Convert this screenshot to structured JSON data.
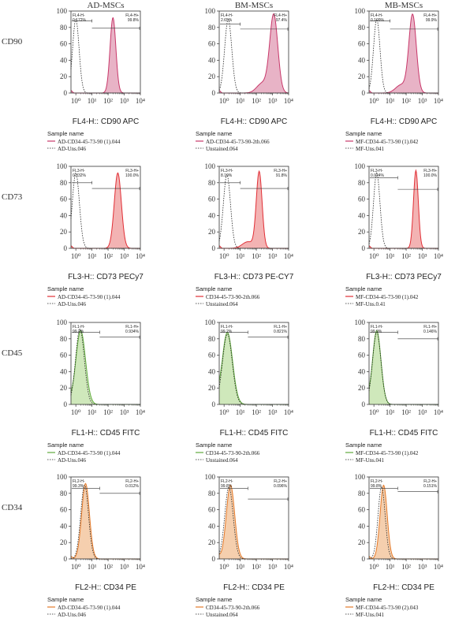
{
  "columns": [
    "AD-MSCs",
    "BM-MSCs",
    "MB-MSCs"
  ],
  "rows": [
    "CD90",
    "CD73",
    "CD45",
    "CD34"
  ],
  "sample_name_label": "Sample name",
  "chart_data": {
    "type": "histogram-grid",
    "y_ticks": [
      "0",
      "20",
      "40",
      "60",
      "80",
      "100"
    ],
    "ylim": [
      0,
      100
    ],
    "x_scale": "log",
    "xlim": [
      0.5,
      10000
    ],
    "x_ticks": [
      1,
      10,
      100,
      1000,
      10000
    ],
    "x_tick_labels": [
      "10⁰",
      "10¹",
      "10²",
      "10³",
      "10⁴"
    ],
    "colors": {
      "CD90": "#c8386a",
      "CD73": "#e12f36",
      "CD45": "#5faa3c",
      "CD34": "#e47a2a"
    },
    "fills": {
      "CD90": "#e8b3c6",
      "CD73": "#f3b3b3",
      "CD45": "#cfe8bb",
      "CD34": "#f5cfae"
    },
    "panels": [
      {
        "row": "CD90",
        "col": "AD-MSCs",
        "xlabel": "FL4-H:: CD90 APC",
        "gate_neg_label": "FL4-H-",
        "gate_neg_value": "0.172%",
        "gate_pos_label": "FL4-H+",
        "gate_pos_value": "99.8%",
        "legend": [
          "AD-CD34-45-73-90 (1).044",
          "AD-Uns.046"
        ],
        "gate": {
          "x_min": 0.5,
          "x_split": 10,
          "x_max": 10000,
          "y": 88,
          "y2": 79
        },
        "stained_peak": {
          "mode": 200,
          "width": 0.18,
          "max": 92,
          "tail": 0
        },
        "unstained_peak": {
          "mode": 1.0,
          "width": 0.2,
          "max": 90
        }
      },
      {
        "row": "CD90",
        "col": "BM-MSCs",
        "xlabel": "FL4-H:: CD90 APC",
        "gate_neg_label": "FL4-H-",
        "gate_neg_value": "2.65%",
        "gate_pos_label": "FL4-H+",
        "gate_pos_value": "97.4%",
        "legend": [
          "AD-CD34-45-73-90-2th.066",
          "Unstained.064"
        ],
        "gate": {
          "x_min": 0.5,
          "x_split": 10,
          "x_max": 10000,
          "y": 84,
          "y2": 78
        },
        "stained_peak": {
          "mode": 1200,
          "width": 0.25,
          "max": 95,
          "tail": 12
        },
        "unstained_peak": {
          "mode": 1.8,
          "width": 0.22,
          "max": 90
        }
      },
      {
        "row": "CD90",
        "col": "MB-MSCs",
        "xlabel": "FL4-H:: CD90 APC",
        "gate_neg_label": "FL4-H-",
        "gate_neg_value": "0.109%",
        "gate_pos_label": "FL4-H+",
        "gate_pos_value": "99.9%",
        "legend": [
          "MF-CD34-45-73-90 (1).042",
          "MF-Uns.041"
        ],
        "gate": {
          "x_min": 0.5,
          "x_split": 10,
          "x_max": 10000,
          "y": 88,
          "y2": 78
        },
        "stained_peak": {
          "mode": 250,
          "width": 0.23,
          "max": 95,
          "tail": 10
        },
        "unstained_peak": {
          "mode": 1.5,
          "width": 0.2,
          "max": 90
        }
      },
      {
        "row": "CD73",
        "col": "AD-MSCs",
        "xlabel": "FL3-H:: CD73 PECy7",
        "gate_neg_label": "FL3-H-",
        "gate_neg_value": "0.032%",
        "gate_pos_label": "FL3-H+",
        "gate_pos_value": "100.0%",
        "legend": [
          "AD-CD34-45-73-90 (1).044",
          "AD-Uns.046"
        ],
        "gate": {
          "x_min": 0.5,
          "x_split": 10,
          "x_max": 10000,
          "y": 80,
          "y2": 73
        },
        "stained_peak": {
          "mode": 400,
          "width": 0.22,
          "max": 92,
          "tail": 0
        },
        "unstained_peak": {
          "mode": 1.0,
          "width": 0.22,
          "max": 92
        }
      },
      {
        "row": "CD73",
        "col": "BM-MSCs",
        "xlabel": "FL3-H:: CD73 PE-CY7",
        "gate_neg_label": "FL3-H-",
        "gate_neg_value": "8.19%",
        "gate_pos_label": "FL3-H+",
        "gate_pos_value": "91.8%",
        "legend": [
          "CD34-45-73-90-2th.066",
          "Unstained.064"
        ],
        "gate": {
          "x_min": 0.5,
          "x_split": 10,
          "x_max": 10000,
          "y": 80,
          "y2": 73
        },
        "stained_peak": {
          "mode": 150,
          "width": 0.18,
          "max": 93,
          "tail": 8
        },
        "unstained_peak": {
          "mode": 1.5,
          "width": 0.22,
          "max": 90
        }
      },
      {
        "row": "CD73",
        "col": "MB-MSCs",
        "xlabel": "FL3-H:: CD73 PECy7",
        "gate_neg_label": "FL3-H-",
        "gate_neg_value": "0.024%",
        "gate_pos_label": "FL3-H+",
        "gate_pos_value": "100.0%",
        "legend": [
          "MF-CD34-45-73-90 (1).042",
          "MF-Uns.0.41"
        ],
        "gate": {
          "x_min": 0.5,
          "x_split": 30,
          "x_max": 10000,
          "y": 86,
          "y2": 72
        },
        "stained_peak": {
          "mode": 400,
          "width": 0.15,
          "max": 95,
          "tail": 0
        },
        "unstained_peak": {
          "mode": 1.5,
          "width": 0.2,
          "max": 92
        }
      },
      {
        "row": "CD45",
        "col": "AD-MSCs",
        "xlabel": "FL1-H:: CD45 FITC",
        "gate_neg_label": "FL1-H-",
        "gate_neg_value": "99.2%",
        "gate_pos_label": "FL1-H+",
        "gate_pos_value": "0.934%",
        "legend": [
          "AD-CD34-45-73-90 (1).044",
          "AD-Uns.046"
        ],
        "gate": {
          "x_min": 0.5,
          "x_split": 30,
          "x_max": 10000,
          "y": 88,
          "y2": 82
        },
        "stained_peak": {
          "mode": 2.0,
          "width": 0.3,
          "max": 90,
          "tail": 0
        },
        "unstained_peak": {
          "mode": 1.8,
          "width": 0.27,
          "max": 92
        }
      },
      {
        "row": "CD45",
        "col": "BM-MSCs",
        "xlabel": "FL1-H:: CD45 FITC",
        "gate_neg_label": "FL1-H-",
        "gate_neg_value": "99.2%",
        "gate_pos_label": "FL1-H+",
        "gate_pos_value": "0.821%",
        "legend": [
          "CD34-45-73-90-2th.066",
          "Unstained.064"
        ],
        "gate": {
          "x_min": 0.5,
          "x_split": 30,
          "x_max": 10000,
          "y": 88,
          "y2": 82
        },
        "stained_peak": {
          "mode": 1.6,
          "width": 0.32,
          "max": 88,
          "tail": 0
        },
        "unstained_peak": {
          "mode": 1.6,
          "width": 0.3,
          "max": 86
        }
      },
      {
        "row": "CD45",
        "col": "MB-MSCs",
        "xlabel": "FL1-H:: CD45 FITC",
        "gate_neg_label": "FL1-H-",
        "gate_neg_value": "99.9%",
        "gate_pos_label": "FL1-H+",
        "gate_pos_value": "0.146%",
        "legend": [
          "MF-CD34-45-73-90 (1).042",
          "MF-Uns.041"
        ],
        "gate": {
          "x_min": 0.5,
          "x_split": 30,
          "x_max": 10000,
          "y": 88,
          "y2": 80
        },
        "stained_peak": {
          "mode": 1.5,
          "width": 0.26,
          "max": 90,
          "tail": 0
        },
        "unstained_peak": {
          "mode": 1.5,
          "width": 0.26,
          "max": 88
        }
      },
      {
        "row": "CD34",
        "col": "AD-MSCs",
        "xlabel": "FL2-H:: CD34 PE",
        "gate_neg_label": "FL2-H-",
        "gate_neg_value": "99.3%",
        "gate_pos_label": "FL2-H+",
        "gate_pos_value": "0.012%",
        "legend": [
          "AD-CD34-45-73-90 (1).044",
          "AD-Uns.046"
        ],
        "gate": {
          "x_min": 0.5,
          "x_split": 30,
          "x_max": 10000,
          "y": 86,
          "y2": 80
        },
        "stained_peak": {
          "mode": 4.0,
          "width": 0.24,
          "max": 92,
          "tail": 0
        },
        "unstained_peak": {
          "mode": 3.5,
          "width": 0.24,
          "max": 90
        }
      },
      {
        "row": "CD34",
        "col": "BM-MSCs",
        "xlabel": "FL2-H:: CD34 PE",
        "gate_neg_label": "FL2-H-",
        "gate_neg_value": "99.8%",
        "gate_pos_label": "FL2-H+",
        "gate_pos_value": "0.096%",
        "legend": [
          "CD34-45-73-90-2th.066",
          "Unstained.064"
        ],
        "gate": {
          "x_min": 0.5,
          "x_split": 30,
          "x_max": 10000,
          "y": 86,
          "y2": 73
        },
        "stained_peak": {
          "mode": 2.5,
          "width": 0.26,
          "max": 90,
          "tail": 0
        },
        "unstained_peak": {
          "mode": 2.0,
          "width": 0.26,
          "max": 88
        }
      },
      {
        "row": "CD34",
        "col": "MB-MSCs",
        "xlabel": "FL2-H:: CD34 PE",
        "gate_neg_label": "FL2-H-",
        "gate_neg_value": "99.8%",
        "gate_pos_label": "FL2-H+",
        "gate_pos_value": "0.151%",
        "legend": [
          "MF-CD34-45-73-90 (2).043",
          "MF-Uns.041"
        ],
        "gate": {
          "x_min": 0.5,
          "x_split": 30,
          "x_max": 10000,
          "y": 86,
          "y2": 82
        },
        "stained_peak": {
          "mode": 4.0,
          "width": 0.22,
          "max": 90,
          "tail": 0
        },
        "unstained_peak": {
          "mode": 3.0,
          "width": 0.22,
          "max": 88
        }
      }
    ]
  }
}
